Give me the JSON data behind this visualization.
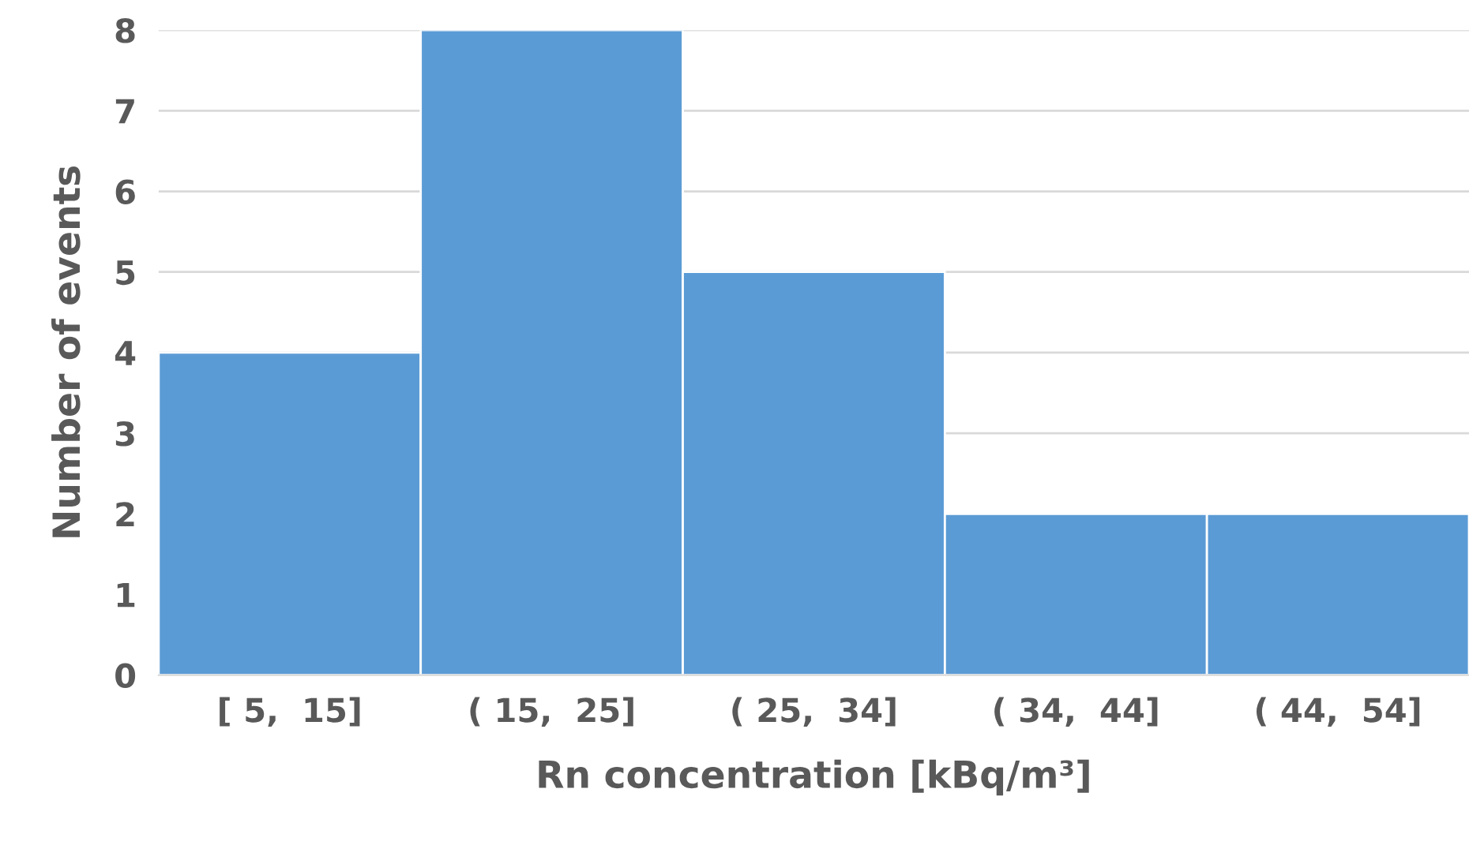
{
  "chart_data": {
    "type": "bar",
    "xlabel": "Rn concentration [kBq/m³]",
    "ylabel": "Number of events",
    "categories": [
      "[ 5,  15]",
      "( 15,  25]",
      "( 25,  34]",
      "( 34,  44]",
      "( 44,  54]"
    ],
    "values": [
      4,
      8,
      5,
      2,
      2
    ],
    "color": "#5b9bd5",
    "ylim": [
      0,
      8
    ],
    "yticks": [
      0,
      1,
      2,
      3,
      4,
      5,
      6,
      7,
      8
    ],
    "grid": "y"
  }
}
